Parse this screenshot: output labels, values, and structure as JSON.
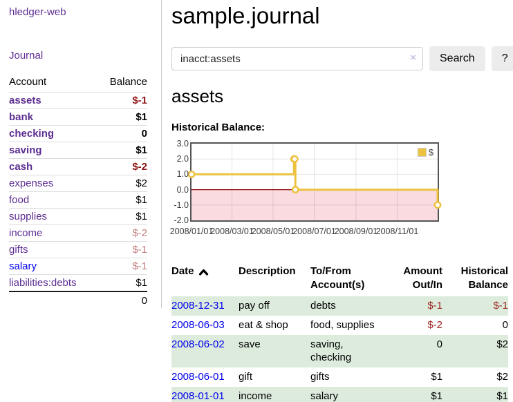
{
  "app": {
    "title": "hledger-web",
    "nav_journal": "Journal"
  },
  "sidebar": {
    "header": {
      "account": "Account",
      "balance": "Balance"
    },
    "accounts": [
      {
        "name": "assets",
        "balance": "$-1"
      },
      {
        "name": "bank",
        "balance": "$1"
      },
      {
        "name": "checking",
        "balance": "0"
      },
      {
        "name": "saving",
        "balance": "$1"
      },
      {
        "name": "cash",
        "balance": "$-2"
      },
      {
        "name": "expenses",
        "balance": "$2"
      },
      {
        "name": "food",
        "balance": "$1"
      },
      {
        "name": "supplies",
        "balance": "$1"
      },
      {
        "name": "income",
        "balance": "$-2"
      },
      {
        "name": "gifts",
        "balance": "$-1"
      },
      {
        "name": "salary",
        "balance": "$-1"
      },
      {
        "name": "liabilities:debts",
        "balance": "$1"
      }
    ],
    "total": "0"
  },
  "main": {
    "title": "sample.journal",
    "search": {
      "value": "inacct:assets",
      "clear": "×",
      "button": "Search",
      "help": "?"
    },
    "account_heading": "assets",
    "chart_heading": "Historical Balance:"
  },
  "chart_data": {
    "type": "line",
    "title": "Historical Balance",
    "step": true,
    "x": [
      "2008-01-01",
      "2008-06-01",
      "2008-06-02",
      "2008-06-03",
      "2008-12-31"
    ],
    "series": [
      {
        "name": "$",
        "values": [
          1,
          2,
          2,
          0,
          -1
        ]
      }
    ],
    "ylim": [
      -2,
      3
    ],
    "yticks": [
      3.0,
      2.0,
      1.0,
      0.0,
      -1.0,
      -2.0
    ],
    "xticks": [
      {
        "date": "2008-01-01",
        "label": "2008/01/01"
      },
      {
        "date": "2008-03-01",
        "label": "2008/03/01"
      },
      {
        "date": "2008-05-01",
        "label": "2008/05/01"
      },
      {
        "date": "2008-07-01",
        "label": "2008/07/01"
      },
      {
        "date": "2008-09-01",
        "label": "2008/09/01"
      },
      {
        "date": "2008-11-01",
        "label": "2008/11/01"
      }
    ],
    "xrange": [
      "2008-01-01",
      "2008-12-31"
    ],
    "legend_position": "top-right",
    "grid": true,
    "colors": {
      "line": "#edc240",
      "marker_fill": "#ffffff",
      "negative_region_fill": "#f9dbe0",
      "zero_line": "#8b0000",
      "grid_line": "rgba(0,0,0,0.10)",
      "border": "#545454"
    }
  },
  "register": {
    "headers": {
      "date": "Date",
      "description": "Description",
      "accounts": "To/From Account(s)",
      "amount": "Amount Out/In",
      "balance": "Historical Balance"
    },
    "rows": [
      {
        "date": "2008-12-31",
        "description": "pay off",
        "accounts": "debts",
        "amount": "$-1",
        "balance": "$-1"
      },
      {
        "date": "2008-06-03",
        "description": "eat & shop",
        "accounts": "food, supplies",
        "amount": "$-2",
        "balance": "0"
      },
      {
        "date": "2008-06-02",
        "description": "save",
        "accounts": "saving, checking",
        "amount": "0",
        "balance": "$2"
      },
      {
        "date": "2008-06-01",
        "description": "gift",
        "accounts": "gifts",
        "amount": "$1",
        "balance": "$2"
      },
      {
        "date": "2008-01-01",
        "description": "income",
        "accounts": "salary",
        "amount": "$1",
        "balance": "$1"
      }
    ]
  },
  "theme": {
    "link_purple": "#5c2d91",
    "link_blue": "#0000ee",
    "negative_strong": "#8e1616",
    "negative_soft": "#c27d7d",
    "row_green": "#dcebdc"
  }
}
